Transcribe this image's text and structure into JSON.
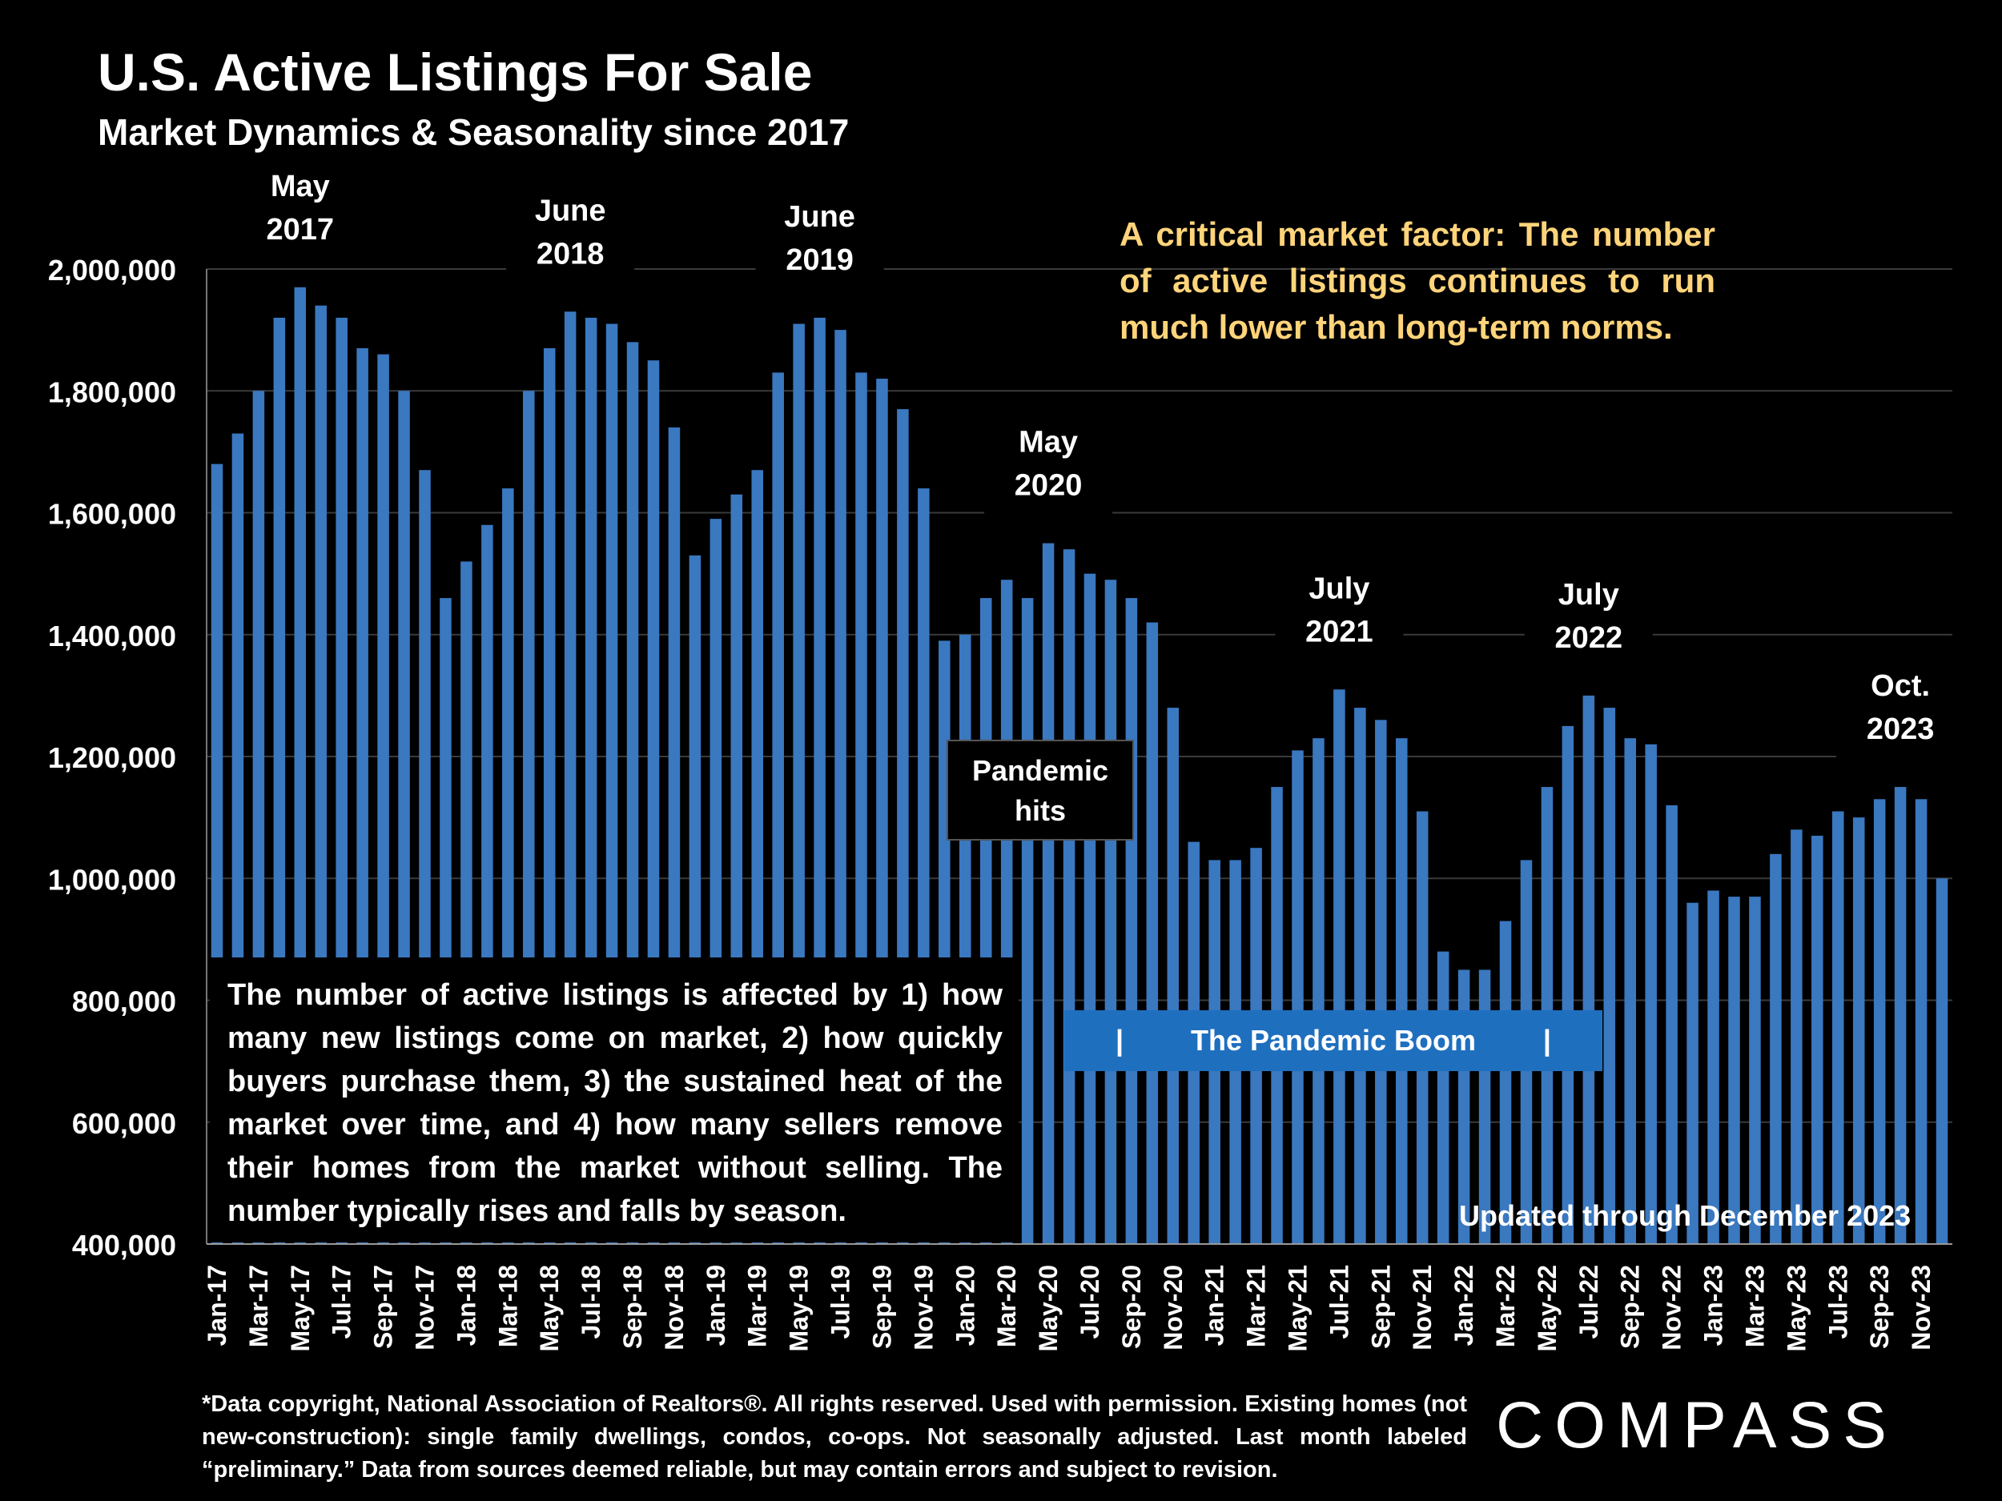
{
  "title": "U.S. Active Listings For Sale",
  "subtitle": "Market Dynamics & Seasonality since 2017",
  "callout": "A critical market factor:  The number of active listings continues to run much lower than long-term norms.",
  "explanation": "The number of active listings is affected by 1) how many new listings come on market, 2) how quickly buyers purchase them, 3) the sustained heat of the market over time, and 4) how many sellers remove their homes from the market without selling. The number typically rises and falls by season.",
  "pandemic_label": {
    "line1": "Pandemic",
    "line2": "hits"
  },
  "boom_band": {
    "text": "The Pandemic Boom",
    "bar_left": "|",
    "bar_right": "|"
  },
  "updated": "Updated through December 2023",
  "footnote": "*Data copyright, National Association of Realtors®. All rights reserved. Used with permission. Existing homes (not new-construction): single family dwellings, condos, co-ops. Not seasonally adjusted. Last month labeled “preliminary.” Data from sources deemed reliable, but may contain errors and subject to revision.",
  "logo_text": "COMPASS",
  "colors": {
    "bar": "#3a78c0",
    "callout": "#ffd47a",
    "band": "#1f6fbf",
    "background": "#000000"
  },
  "chart_data": {
    "type": "bar",
    "title": "U.S. Active Listings For Sale",
    "subtitle": "Market Dynamics & Seasonality since 2017",
    "ylim": [
      400000,
      2000000
    ],
    "y_ticks": [
      "2,000,000",
      "1,800,000",
      "1,600,000",
      "1,400,000",
      "1,200,000",
      "1,000,000",
      "800,000",
      "600,000",
      "400,000"
    ],
    "y_tick_values": [
      2000000,
      1800000,
      1600000,
      1400000,
      1200000,
      1000000,
      800000,
      600000,
      400000
    ],
    "grid": true,
    "categories": [
      "Jan-17",
      "Feb-17",
      "Mar-17",
      "Apr-17",
      "May-17",
      "Jun-17",
      "Jul-17",
      "Aug-17",
      "Sep-17",
      "Oct-17",
      "Nov-17",
      "Dec-17",
      "Jan-18",
      "Feb-18",
      "Mar-18",
      "Apr-18",
      "May-18",
      "Jun-18",
      "Jul-18",
      "Aug-18",
      "Sep-18",
      "Oct-18",
      "Nov-18",
      "Dec-18",
      "Jan-19",
      "Feb-19",
      "Mar-19",
      "Apr-19",
      "May-19",
      "Jun-19",
      "Jul-19",
      "Aug-19",
      "Sep-19",
      "Oct-19",
      "Nov-19",
      "Dec-19",
      "Jan-20",
      "Feb-20",
      "Mar-20",
      "Apr-20",
      "May-20",
      "Jun-20",
      "Jul-20",
      "Aug-20",
      "Sep-20",
      "Oct-20",
      "Nov-20",
      "Dec-20",
      "Jan-21",
      "Feb-21",
      "Mar-21",
      "Apr-21",
      "May-21",
      "Jun-21",
      "Jul-21",
      "Aug-21",
      "Sep-21",
      "Oct-21",
      "Nov-21",
      "Dec-21",
      "Jan-22",
      "Feb-22",
      "Mar-22",
      "Apr-22",
      "May-22",
      "Jun-22",
      "Jul-22",
      "Aug-22",
      "Sep-22",
      "Oct-22",
      "Nov-22",
      "Dec-22",
      "Jan-23",
      "Feb-23",
      "Mar-23",
      "Apr-23",
      "May-23",
      "Jun-23",
      "Jul-23",
      "Aug-23",
      "Sep-23",
      "Oct-23",
      "Nov-23",
      "Dec-23"
    ],
    "values": [
      1680000,
      1730000,
      1800000,
      1920000,
      1970000,
      1940000,
      1920000,
      1870000,
      1860000,
      1800000,
      1670000,
      1460000,
      1520000,
      1580000,
      1640000,
      1800000,
      1870000,
      1930000,
      1920000,
      1910000,
      1880000,
      1850000,
      1740000,
      1530000,
      1590000,
      1630000,
      1670000,
      1830000,
      1910000,
      1920000,
      1900000,
      1830000,
      1820000,
      1770000,
      1640000,
      1390000,
      1400000,
      1460000,
      1490000,
      1460000,
      1550000,
      1540000,
      1500000,
      1490000,
      1460000,
      1420000,
      1280000,
      1060000,
      1030000,
      1030000,
      1050000,
      1150000,
      1210000,
      1230000,
      1310000,
      1280000,
      1260000,
      1230000,
      1110000,
      880000,
      850000,
      850000,
      930000,
      1030000,
      1150000,
      1250000,
      1300000,
      1280000,
      1230000,
      1220000,
      1120000,
      960000,
      980000,
      970000,
      970000,
      1040000,
      1080000,
      1070000,
      1110000,
      1100000,
      1130000,
      1150000,
      1130000,
      1000000
    ],
    "tick_labels": [
      "Jan-17",
      "Mar-17",
      "May-17",
      "Jul-17",
      "Sep-17",
      "Nov-17",
      "Jan-18",
      "Mar-18",
      "May-18",
      "Jul-18",
      "Sep-18",
      "Nov-18",
      "Jan-19",
      "Mar-19",
      "May-19",
      "Jul-19",
      "Sep-19",
      "Nov-19",
      "Jan-20",
      "Mar-20",
      "May-20",
      "Jul-20",
      "Sep-20",
      "Nov-20",
      "Jan-21",
      "Mar-21",
      "May-21",
      "Jul-21",
      "Sep-21",
      "Nov-21",
      "Jan-22",
      "Mar-22",
      "May-22",
      "Jul-22",
      "Sep-22",
      "Nov-22",
      "Jan-23",
      "Mar-23",
      "May-23",
      "Jul-23",
      "Sep-23",
      "Nov-23"
    ],
    "annotations": [
      {
        "month": "May-17",
        "line1": "May",
        "line2": "2017"
      },
      {
        "month": "Jun-18",
        "line1": "June",
        "line2": "2018"
      },
      {
        "month": "Jun-19",
        "line1": "June",
        "line2": "2019"
      },
      {
        "month": "May-20",
        "line1": "May",
        "line2": "2020"
      },
      {
        "month": "Jul-21",
        "line1": "July",
        "line2": "2021"
      },
      {
        "month": "Jul-22",
        "line1": "July",
        "line2": "2022"
      },
      {
        "month": "Oct-23",
        "line1": "Oct.",
        "line2": "2023"
      }
    ]
  }
}
